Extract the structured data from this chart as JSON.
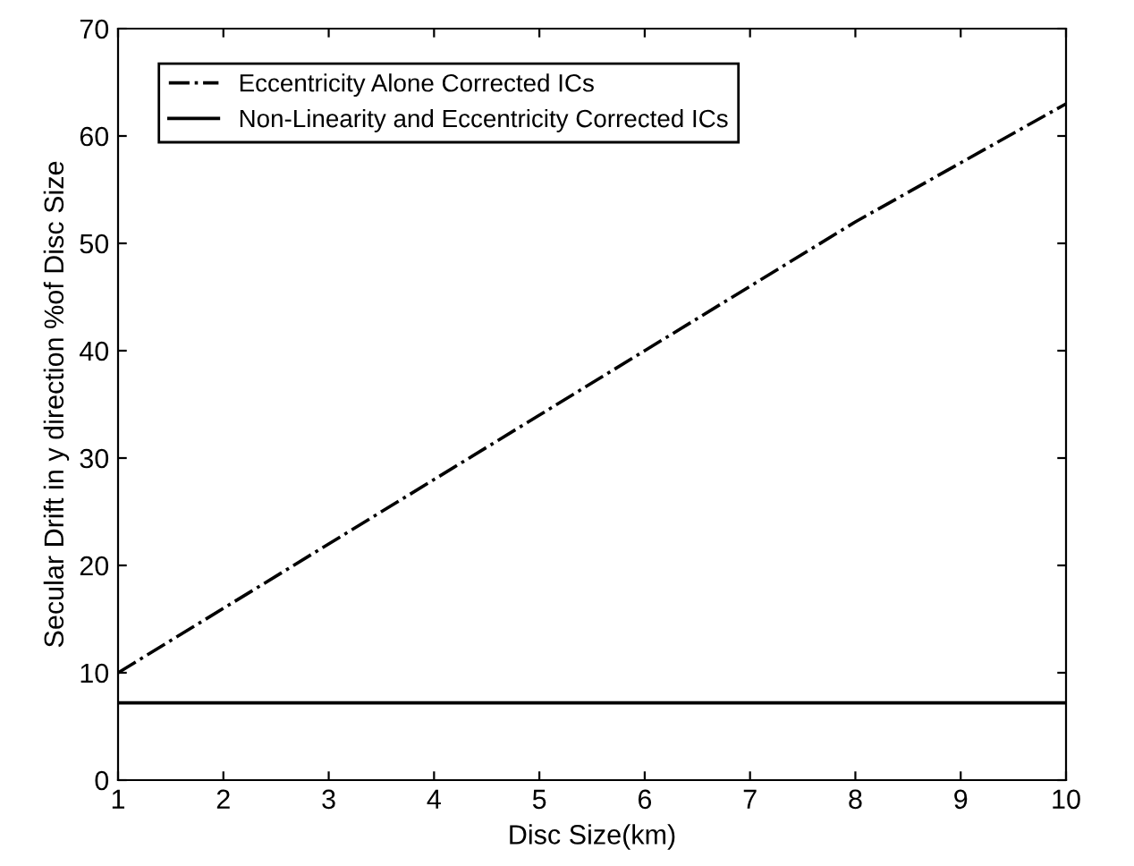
{
  "chart_data": {
    "type": "line",
    "xlabel": "Disc Size(km)",
    "ylabel": "Secular Drift in y direction %of Disc Size",
    "x": [
      1,
      2,
      3,
      4,
      5,
      6,
      7,
      8,
      9,
      10
    ],
    "series": [
      {
        "name": "Eccentricity Alone Corrected ICs",
        "color": "#000000",
        "line_style": "dashdot",
        "values": [
          10,
          16,
          22,
          28,
          34,
          40,
          46,
          52,
          57.5,
          63
        ]
      },
      {
        "name": "Non-Linearity and Eccentricity Corrected ICs",
        "color": "#000000",
        "line_style": "solid",
        "values": [
          7.2,
          7.2,
          7.2,
          7.2,
          7.2,
          7.2,
          7.2,
          7.2,
          7.2,
          7.2
        ]
      }
    ],
    "xlim": [
      1,
      10
    ],
    "ylim": [
      0,
      70
    ],
    "xticks": [
      1,
      2,
      3,
      4,
      5,
      6,
      7,
      8,
      9,
      10
    ],
    "yticks": [
      0,
      10,
      20,
      30,
      40,
      50,
      60,
      70
    ],
    "grid": false,
    "legend": "top left",
    "marker": "none"
  }
}
